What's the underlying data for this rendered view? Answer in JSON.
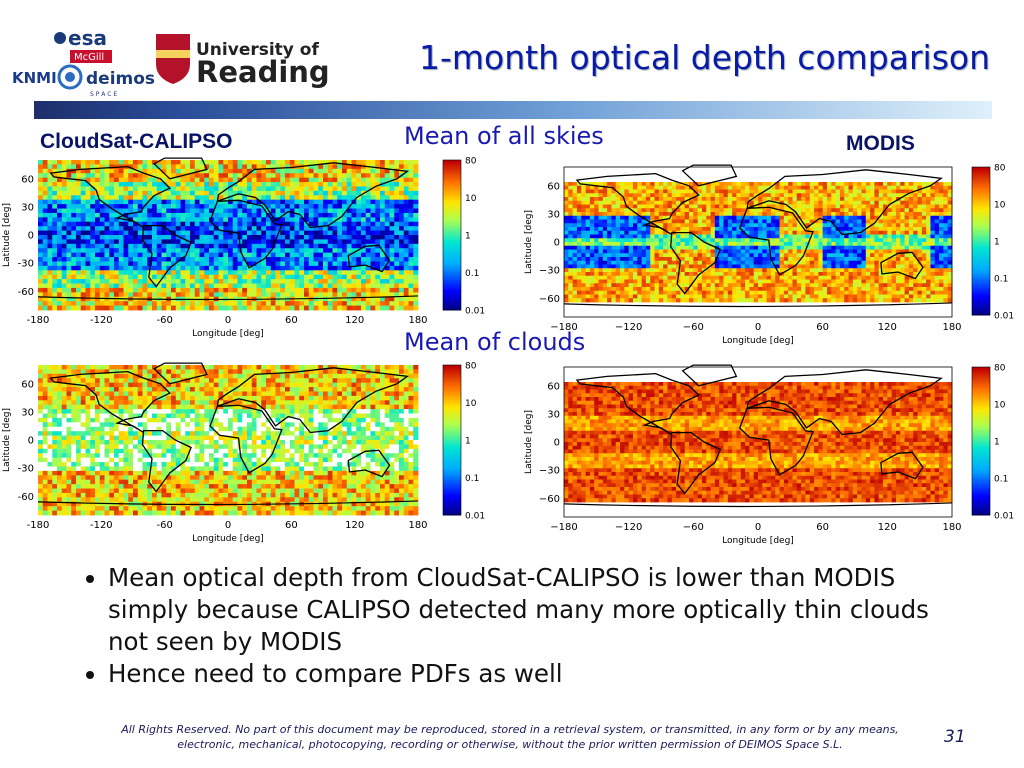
{
  "header": {
    "title": "1-month optical depth comparison",
    "logo_texts": {
      "esa": "esa",
      "mcgill": "McGill",
      "knmi": "KNMI",
      "deimos": "deimos",
      "deimos_sub": "S P A C E",
      "reading_line1": "University of",
      "reading_line2": "Reading"
    }
  },
  "labels": {
    "left": "CloudSat-CALIPSO",
    "right": "MODIS",
    "section_top": "Mean of all skies",
    "section_bottom": "Mean of clouds"
  },
  "axes": {
    "xlabel": "Longitude [deg]",
    "ylabel": "Latitude [deg]",
    "xticks_left": [
      "-180",
      "-120",
      "-60",
      "0",
      "60",
      "120",
      "180"
    ],
    "xticks_right": [
      "−180",
      "−120",
      "−60",
      "0",
      "60",
      "120",
      "180"
    ],
    "yticks_left": [
      "60",
      "30",
      "0",
      "-30",
      "-60"
    ],
    "yticks_right": [
      "60",
      "30",
      "0",
      "−30",
      "−60"
    ],
    "colorbar_ticks": [
      "80",
      "10",
      "1",
      "0.1",
      "0.01"
    ]
  },
  "chart_data": [
    {
      "type": "heatmap",
      "title": "",
      "dataset": "CloudSat-CALIPSO",
      "section": "Mean of all skies",
      "xlabel": "Longitude [deg]",
      "ylabel": "Latitude [deg]",
      "xlim": [
        -180,
        180
      ],
      "ylim": [
        -80,
        80
      ],
      "colorbar": {
        "scale": "log",
        "range": [
          0.01,
          80
        ]
      }
    },
    {
      "type": "heatmap",
      "title": "",
      "dataset": "MODIS",
      "section": "Mean of all skies",
      "xlabel": "Longitude [deg]",
      "ylabel": "Latitude [deg]",
      "xlim": [
        -180,
        180
      ],
      "ylim": [
        -80,
        80
      ],
      "colorbar": {
        "scale": "log",
        "range": [
          0.01,
          80
        ]
      }
    },
    {
      "type": "heatmap",
      "title": "",
      "dataset": "CloudSat-CALIPSO",
      "section": "Mean of clouds",
      "xlabel": "Longitude [deg]",
      "ylabel": "Latitude [deg]",
      "xlim": [
        -180,
        180
      ],
      "ylim": [
        -80,
        80
      ],
      "colorbar": {
        "scale": "log",
        "range": [
          0.01,
          80
        ]
      }
    },
    {
      "type": "heatmap",
      "title": "",
      "dataset": "MODIS",
      "section": "Mean of clouds",
      "xlabel": "Longitude [deg]",
      "ylabel": "Latitude [deg]",
      "xlim": [
        -180,
        180
      ],
      "ylim": [
        -80,
        80
      ],
      "colorbar": {
        "scale": "log",
        "range": [
          0.01,
          80
        ]
      }
    }
  ],
  "bullets": [
    "Mean optical depth from CloudSat-CALIPSO is lower than MODIS simply because CALIPSO detected many more optically thin clouds not seen by MODIS",
    "Hence need to compare PDFs as well"
  ],
  "footer": {
    "text": "All Rights Reserved. No part of this document may be reproduced, stored in a retrieval system, or transmitted, in any form or by any means, electronic, mechanical, photocopying, recording or otherwise, without the prior written permission of DEIMOS Space S.L.",
    "page": "31"
  }
}
